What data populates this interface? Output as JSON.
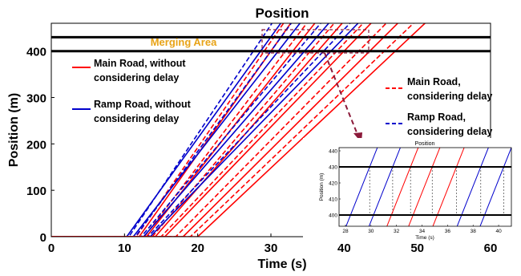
{
  "chart_data": {
    "type": "line",
    "title": "Position",
    "xlabel": "Time (s)",
    "ylabel": "Position (m)",
    "xlim": [
      0,
      60
    ],
    "ylim": [
      0,
      460
    ],
    "x_ticks": [
      0,
      10,
      20,
      30,
      40,
      50,
      60
    ],
    "y_ticks": [
      0,
      100,
      200,
      300,
      400
    ],
    "grid": false,
    "reference_lines": [
      {
        "y": 400,
        "color": "#000000"
      },
      {
        "y": 430,
        "color": "#000000"
      }
    ],
    "annotation": {
      "text": "Merging Area",
      "color": "#e8a317"
    },
    "legend": [
      {
        "label_line1": "Main Road, without",
        "label_line2": "considering delay",
        "color": "#ff0000",
        "style": "solid"
      },
      {
        "label_line1": "Ramp Road, without",
        "label_line2": "considering delay",
        "color": "#0000cc",
        "style": "solid"
      },
      {
        "label_line1": "Main Road,",
        "label_line2": "considering delay",
        "color": "#ff0000",
        "style": "dashed"
      },
      {
        "label_line1": "Ramp Road,",
        "label_line2": "considering delay",
        "color": "#0000cc",
        "style": "dashed"
      }
    ],
    "series": [
      {
        "color": "#0000cc",
        "style": "solid",
        "start_time": 10.3,
        "reach_400": 28.6
      },
      {
        "color": "#0000cc",
        "style": "dashed",
        "start_time": 10.6,
        "reach_400": 27.6
      },
      {
        "color": "#ff0000",
        "style": "solid",
        "start_time": 12.0,
        "reach_400": 30.0
      },
      {
        "color": "#ff0000",
        "style": "dashed",
        "start_time": 11.6,
        "reach_400": 29.1
      },
      {
        "color": "#0000cc",
        "style": "solid",
        "start_time": 11.2,
        "reach_400": 31.0
      },
      {
        "color": "#0000cc",
        "style": "dashed",
        "start_time": 11.5,
        "reach_400": 30.0
      },
      {
        "color": "#ff0000",
        "style": "solid",
        "start_time": 13.0,
        "reach_400": 33.0
      },
      {
        "color": "#ff0000",
        "style": "dashed",
        "start_time": 12.7,
        "reach_400": 32.0
      },
      {
        "color": "#0000cc",
        "style": "solid",
        "start_time": 12.6,
        "reach_400": 34.6
      },
      {
        "color": "#0000cc",
        "style": "dashed",
        "start_time": 12.3,
        "reach_400": 33.6
      },
      {
        "color": "#ff0000",
        "style": "solid",
        "start_time": 14.2,
        "reach_400": 36.4
      },
      {
        "color": "#ff0000",
        "style": "dashed",
        "start_time": 13.8,
        "reach_400": 35.4
      },
      {
        "color": "#0000cc",
        "style": "solid",
        "start_time": 13.5,
        "reach_400": 38.2
      },
      {
        "color": "#0000cc",
        "style": "dashed",
        "start_time": 13.2,
        "reach_400": 37.2
      },
      {
        "color": "#ff0000",
        "style": "solid",
        "start_time": 15.5,
        "reach_400": 40.0
      },
      {
        "color": "#ff0000",
        "style": "dashed",
        "start_time": 15.0,
        "reach_400": 39.0
      },
      {
        "color": "#ff0000",
        "style": "solid",
        "start_time": 18.0,
        "reach_400": 43.5
      },
      {
        "color": "#ff0000",
        "style": "dashed",
        "start_time": 17.0,
        "reach_400": 42.0
      },
      {
        "color": "#ff0000",
        "style": "solid",
        "start_time": 20.0,
        "reach_400": 47.0
      },
      {
        "color": "#ff0000",
        "style": "dashed",
        "start_time": 19.0,
        "reach_400": 45.5
      }
    ],
    "inset": {
      "title": "Position",
      "xlabel": "Time (s)",
      "ylabel": "Position (m)",
      "xlim": [
        27.5,
        41
      ],
      "ylim": [
        393,
        442
      ],
      "x_ticks": [
        28,
        30,
        32,
        34,
        36,
        38,
        40
      ],
      "y_ticks": [
        400,
        410,
        420,
        430,
        440
      ],
      "crossings_at_400": [
        {
          "t": 28.4,
          "color": "#0000cc"
        },
        {
          "t": 30.2,
          "color": "#0000cc"
        },
        {
          "t": 31.6,
          "color": "#ff0000"
        },
        {
          "t": 33.3,
          "color": "#ff0000"
        },
        {
          "t": 35.2,
          "color": "#ff0000"
        },
        {
          "t": 37.1,
          "color": "#0000cc"
        },
        {
          "t": 38.9,
          "color": "#0000cc"
        }
      ],
      "slope": 20
    }
  }
}
